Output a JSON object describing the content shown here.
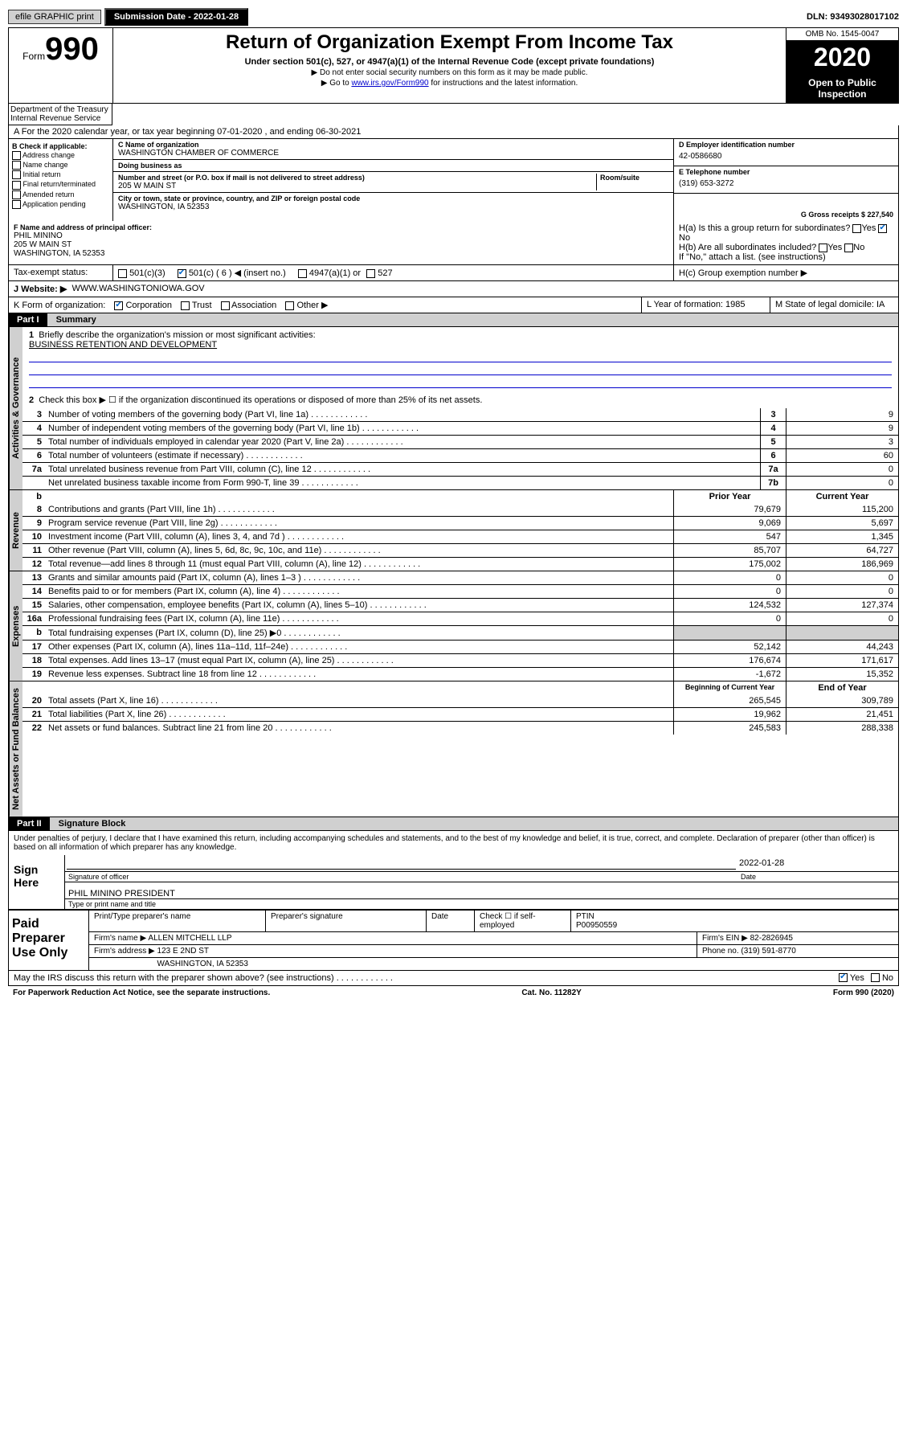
{
  "topbar": {
    "efile": "efile GRAPHIC print",
    "submission": "Submission Date - 2022-01-28",
    "dln": "DLN: 93493028017102"
  },
  "header": {
    "form_word": "Form",
    "form_num": "990",
    "title": "Return of Organization Exempt From Income Tax",
    "subtitle": "Under section 501(c), 527, or 4947(a)(1) of the Internal Revenue Code (except private foundations)",
    "line1": "▶ Do not enter social security numbers on this form as it may be made public.",
    "line2_pre": "▶ Go to ",
    "line2_link": "www.irs.gov/Form990",
    "line2_post": " for instructions and the latest information.",
    "omb": "OMB No. 1545-0047",
    "year": "2020",
    "open": "Open to Public Inspection",
    "dept": "Department of the Treasury Internal Revenue Service"
  },
  "rowA": "A For the 2020 calendar year, or tax year beginning 07-01-2020   , and ending 06-30-2021",
  "colB": {
    "label": "B Check if applicable:",
    "opts": [
      "Address change",
      "Name change",
      "Initial return",
      "Final return/terminated",
      "Amended return",
      "Application pending"
    ]
  },
  "entity": {
    "c_label": "C Name of organization",
    "name": "WASHINGTON CHAMBER OF COMMERCE",
    "dba_label": "Doing business as",
    "dba": "",
    "addr_label": "Number and street (or P.O. box if mail is not delivered to street address)",
    "room_label": "Room/suite",
    "addr": "205 W MAIN ST",
    "city_label": "City or town, state or province, country, and ZIP or foreign postal code",
    "city": "WASHINGTON, IA  52353"
  },
  "colD": {
    "d_label": "D Employer identification number",
    "ein": "42-0586680",
    "e_label": "E Telephone number",
    "phone": "(319) 653-3272",
    "g_label": "G Gross receipts $ 227,540"
  },
  "officer": {
    "f_label": "F  Name and address of principal officer:",
    "name": "PHIL MININO",
    "addr1": "205 W MAIN ST",
    "addr2": "WASHINGTON, IA  52353"
  },
  "h": {
    "a_label": "H(a)  Is this a group return for subordinates?",
    "yes": "Yes",
    "no": "No",
    "b_label": "H(b)  Are all subordinates included?",
    "b_note": "If \"No,\" attach a list. (see instructions)",
    "c_label": "H(c)  Group exemption number ▶"
  },
  "taxexempt": {
    "label": "Tax-exempt status:",
    "o1": "501(c)(3)",
    "o2": "501(c) ( 6 ) ◀ (insert no.)",
    "o3": "4947(a)(1) or",
    "o4": "527"
  },
  "website": {
    "label": "J   Website: ▶",
    "val": "WWW.WASHINGTONIOWA.GOV"
  },
  "rowK": {
    "label": "K Form of organization:",
    "opts": [
      "Corporation",
      "Trust",
      "Association",
      "Other ▶"
    ]
  },
  "rowLM": {
    "l": "L Year of formation: 1985",
    "m": "M State of legal domicile: IA"
  },
  "part1": {
    "hdr": "Part I",
    "title": "Summary",
    "side1": "Activities & Governance",
    "side2": "Revenue",
    "side3": "Expenses",
    "side4": "Net Assets or Fund Balances",
    "l1": "Briefly describe the organization's mission or most significant activities:",
    "l1v": "BUSINESS RETENTION AND DEVELOPMENT",
    "l2": "Check this box ▶ ☐  if the organization discontinued its operations or disposed of more than 25% of its net assets.",
    "lines_gov": [
      {
        "n": "3",
        "t": "Number of voting members of the governing body (Part VI, line 1a)",
        "b": "3",
        "v": "9"
      },
      {
        "n": "4",
        "t": "Number of independent voting members of the governing body (Part VI, line 1b)",
        "b": "4",
        "v": "9"
      },
      {
        "n": "5",
        "t": "Total number of individuals employed in calendar year 2020 (Part V, line 2a)",
        "b": "5",
        "v": "3"
      },
      {
        "n": "6",
        "t": "Total number of volunteers (estimate if necessary)",
        "b": "6",
        "v": "60"
      },
      {
        "n": "7a",
        "t": "Total unrelated business revenue from Part VIII, column (C), line 12",
        "b": "7a",
        "v": "0"
      },
      {
        "n": "",
        "t": "Net unrelated business taxable income from Form 990-T, line 39",
        "b": "7b",
        "v": "0"
      }
    ],
    "col_py": "Prior Year",
    "col_cy": "Current Year",
    "col_bcy": "Beginning of Current Year",
    "col_ey": "End of Year",
    "lines_rev": [
      {
        "n": "8",
        "t": "Contributions and grants (Part VIII, line 1h)",
        "p": "79,679",
        "c": "115,200"
      },
      {
        "n": "9",
        "t": "Program service revenue (Part VIII, line 2g)",
        "p": "9,069",
        "c": "5,697"
      },
      {
        "n": "10",
        "t": "Investment income (Part VIII, column (A), lines 3, 4, and 7d )",
        "p": "547",
        "c": "1,345"
      },
      {
        "n": "11",
        "t": "Other revenue (Part VIII, column (A), lines 5, 6d, 8c, 9c, 10c, and 11e)",
        "p": "85,707",
        "c": "64,727"
      },
      {
        "n": "12",
        "t": "Total revenue—add lines 8 through 11 (must equal Part VIII, column (A), line 12)",
        "p": "175,002",
        "c": "186,969"
      }
    ],
    "lines_exp": [
      {
        "n": "13",
        "t": "Grants and similar amounts paid (Part IX, column (A), lines 1–3 )",
        "p": "0",
        "c": "0"
      },
      {
        "n": "14",
        "t": "Benefits paid to or for members (Part IX, column (A), line 4)",
        "p": "0",
        "c": "0"
      },
      {
        "n": "15",
        "t": "Salaries, other compensation, employee benefits (Part IX, column (A), lines 5–10)",
        "p": "124,532",
        "c": "127,374"
      },
      {
        "n": "16a",
        "t": "Professional fundraising fees (Part IX, column (A), line 11e)",
        "p": "0",
        "c": "0"
      },
      {
        "n": "b",
        "t": "Total fundraising expenses (Part IX, column (D), line 25) ▶0",
        "p": "",
        "c": "",
        "shaded": true
      },
      {
        "n": "17",
        "t": "Other expenses (Part IX, column (A), lines 11a–11d, 11f–24e)",
        "p": "52,142",
        "c": "44,243"
      },
      {
        "n": "18",
        "t": "Total expenses. Add lines 13–17 (must equal Part IX, column (A), line 25)",
        "p": "176,674",
        "c": "171,617"
      },
      {
        "n": "19",
        "t": "Revenue less expenses. Subtract line 18 from line 12",
        "p": "-1,672",
        "c": "15,352"
      }
    ],
    "lines_net": [
      {
        "n": "20",
        "t": "Total assets (Part X, line 16)",
        "p": "265,545",
        "c": "309,789"
      },
      {
        "n": "21",
        "t": "Total liabilities (Part X, line 26)",
        "p": "19,962",
        "c": "21,451"
      },
      {
        "n": "22",
        "t": "Net assets or fund balances. Subtract line 21 from line 20",
        "p": "245,583",
        "c": "288,338"
      }
    ]
  },
  "part2": {
    "hdr": "Part II",
    "title": "Signature Block",
    "penalty": "Under penalties of perjury, I declare that I have examined this return, including accompanying schedules and statements, and to the best of my knowledge and belief, it is true, correct, and complete. Declaration of preparer (other than officer) is based on all information of which preparer has any knowledge."
  },
  "sign": {
    "left": "Sign Here",
    "sig_label": "Signature of officer",
    "date_label": "Date",
    "date": "2022-01-28",
    "name": "PHIL MININO PRESIDENT",
    "name_label": "Type or print name and title"
  },
  "prep": {
    "left": "Paid Preparer Use Only",
    "c1": "Print/Type preparer's name",
    "c2": "Preparer's signature",
    "c3": "Date",
    "c4": "Check ☐ if self-employed",
    "c5_label": "PTIN",
    "c5": "P00950559",
    "firm_label": "Firm's name   ▶",
    "firm": "ALLEN MITCHELL LLP",
    "ein_label": "Firm's EIN ▶",
    "ein": "82-2826945",
    "addr_label": "Firm's address ▶",
    "addr1": "123 E 2ND ST",
    "addr2": "WASHINGTON, IA  52353",
    "phone_label": "Phone no.",
    "phone": "(319) 591-8770",
    "discuss": "May the IRS discuss this return with the preparer shown above? (see instructions)"
  },
  "footer": {
    "left": "For Paperwork Reduction Act Notice, see the separate instructions.",
    "mid": "Cat. No. 11282Y",
    "right": "Form 990 (2020)"
  }
}
